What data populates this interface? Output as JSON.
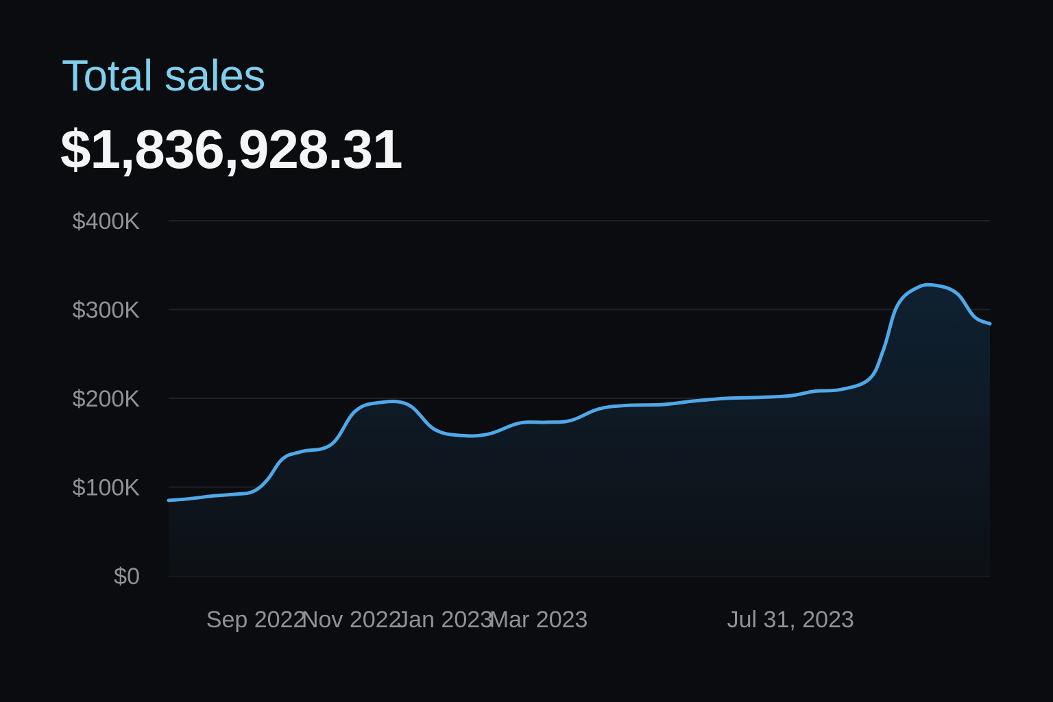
{
  "header": {
    "title": "Total sales",
    "total_value": "$1,836,928.31"
  },
  "colors": {
    "background": "#0b0c0f",
    "title": "#7fd0ee",
    "line": "#4fa9e8",
    "area_top": "#0f2233",
    "grid": "#1f2126",
    "tick_text": "#8f9297"
  },
  "chart_data": {
    "type": "area",
    "title": "Total sales",
    "xlabel": "",
    "ylabel": "",
    "ylim": [
      0,
      400000
    ],
    "y_ticks": [
      {
        "value": 0,
        "label": "$0"
      },
      {
        "value": 100000,
        "label": "$100K"
      },
      {
        "value": 200000,
        "label": "$200K"
      },
      {
        "value": 300000,
        "label": "$300K"
      },
      {
        "value": 400000,
        "label": "$400K"
      }
    ],
    "x_ticks": [
      {
        "date": "2022-09-01",
        "label": "Sep 2022"
      },
      {
        "date": "2022-11-01",
        "label": "Nov 2022"
      },
      {
        "date": "2023-01-01",
        "label": "Jan 2023"
      },
      {
        "date": "2023-03-01",
        "label": "Mar 2023"
      },
      {
        "date": "2023-07-31",
        "label": "Jul 31, 2023"
      }
    ],
    "x_range": [
      "2022-08-08",
      "2024-01-15"
    ],
    "grid": true,
    "series": [
      {
        "points": [
          {
            "x": "2022-08-08",
            "y": 85000
          },
          {
            "x": "2022-08-22",
            "y": 87000
          },
          {
            "x": "2022-09-05",
            "y": 90000
          },
          {
            "x": "2022-09-20",
            "y": 92000
          },
          {
            "x": "2022-10-01",
            "y": 95000
          },
          {
            "x": "2022-10-10",
            "y": 108000
          },
          {
            "x": "2022-10-20",
            "y": 132000
          },
          {
            "x": "2022-11-01",
            "y": 140000
          },
          {
            "x": "2022-11-20",
            "y": 148000
          },
          {
            "x": "2022-12-05",
            "y": 185000
          },
          {
            "x": "2022-12-20",
            "y": 195000
          },
          {
            "x": "2023-01-08",
            "y": 193000
          },
          {
            "x": "2023-01-25",
            "y": 165000
          },
          {
            "x": "2023-02-12",
            "y": 158000
          },
          {
            "x": "2023-03-01",
            "y": 160000
          },
          {
            "x": "2023-03-20",
            "y": 172000
          },
          {
            "x": "2023-04-06",
            "y": 173000
          },
          {
            "x": "2023-04-22",
            "y": 175000
          },
          {
            "x": "2023-05-10",
            "y": 188000
          },
          {
            "x": "2023-05-28",
            "y": 192000
          },
          {
            "x": "2023-06-20",
            "y": 193000
          },
          {
            "x": "2023-07-10",
            "y": 197000
          },
          {
            "x": "2023-07-31",
            "y": 200000
          },
          {
            "x": "2023-08-20",
            "y": 201000
          },
          {
            "x": "2023-09-10",
            "y": 203000
          },
          {
            "x": "2023-09-25",
            "y": 208000
          },
          {
            "x": "2023-10-12",
            "y": 210000
          },
          {
            "x": "2023-10-30",
            "y": 222000
          },
          {
            "x": "2023-11-08",
            "y": 255000
          },
          {
            "x": "2023-11-17",
            "y": 305000
          },
          {
            "x": "2023-11-30",
            "y": 325000
          },
          {
            "x": "2023-12-12",
            "y": 327000
          },
          {
            "x": "2023-12-25",
            "y": 318000
          },
          {
            "x": "2024-01-05",
            "y": 292000
          },
          {
            "x": "2024-01-15",
            "y": 284000
          }
        ]
      }
    ]
  }
}
